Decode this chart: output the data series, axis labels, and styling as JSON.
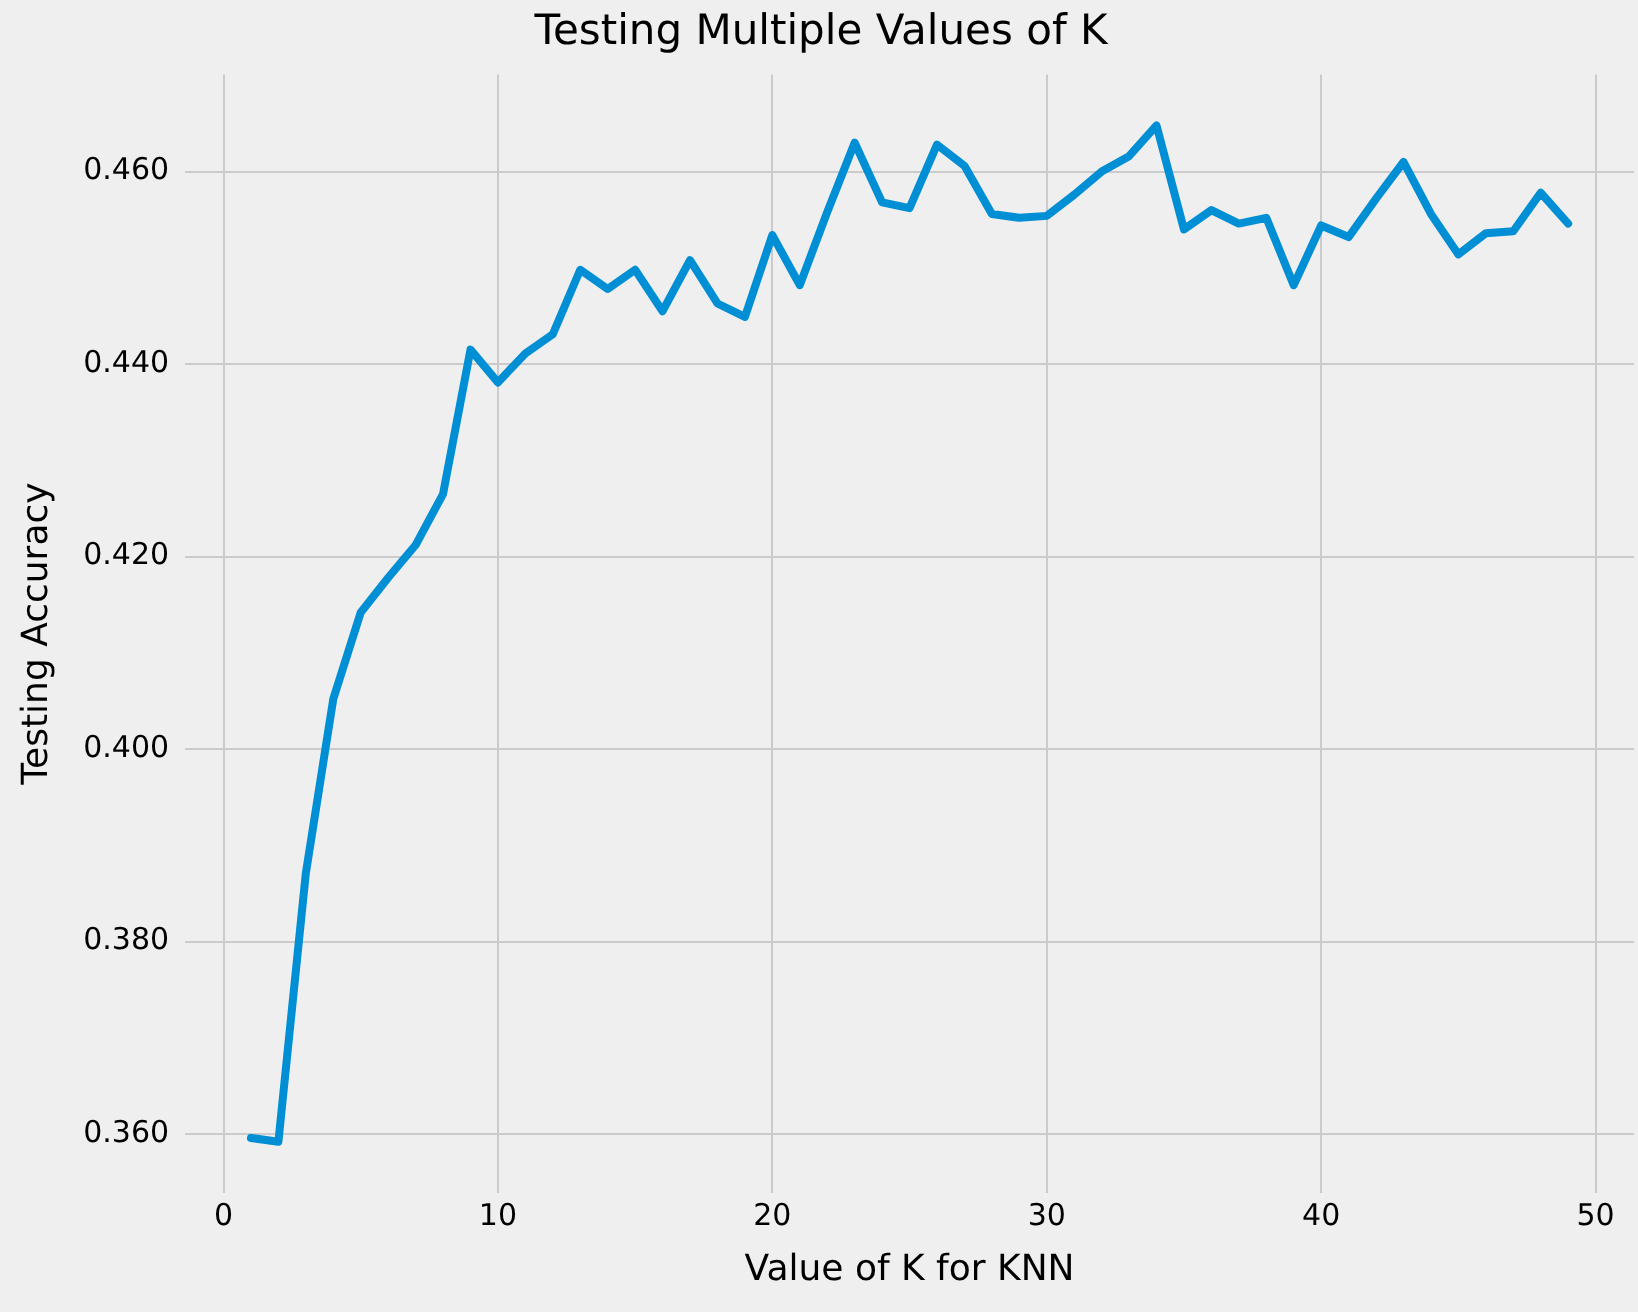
{
  "chart_data": {
    "type": "line",
    "title": "Testing Multiple Values of K",
    "xlabel": "Value of K for KNN",
    "ylabel": "Testing Accuracy",
    "x": [
      1,
      2,
      3,
      4,
      5,
      6,
      7,
      8,
      9,
      10,
      11,
      12,
      13,
      14,
      15,
      16,
      17,
      18,
      19,
      20,
      21,
      22,
      23,
      24,
      25,
      26,
      27,
      28,
      29,
      30,
      31,
      32,
      33,
      34,
      35,
      36,
      37,
      38,
      39,
      40,
      41,
      42,
      43,
      44,
      45,
      46,
      47,
      48,
      49
    ],
    "series": [
      {
        "color": "#008fd5",
        "values": [
          0.3596,
          0.3592,
          0.3871,
          0.4052,
          0.4142,
          0.4178,
          0.4212,
          0.4265,
          0.4415,
          0.4381,
          0.4411,
          0.4431,
          0.4498,
          0.4478,
          0.4498,
          0.4455,
          0.4508,
          0.4463,
          0.4449,
          0.4534,
          0.4482,
          0.4558,
          0.463,
          0.4568,
          0.4562,
          0.4628,
          0.4606,
          0.4556,
          0.4552,
          0.4554,
          0.4576,
          0.46,
          0.4616,
          0.4648,
          0.454,
          0.456,
          0.4546,
          0.4552,
          0.4482,
          0.4544,
          0.4532,
          0.4572,
          0.461,
          0.4556,
          0.4514,
          0.4536,
          0.4538,
          0.4578,
          0.4546
        ]
      }
    ],
    "xlim": [
      -1.4,
      51.4
    ],
    "xticks": [
      0,
      10,
      20,
      30,
      40,
      50
    ],
    "ylim": [
      0.3539,
      0.4701
    ],
    "yticks": [
      {
        "value": 0.36,
        "label": "0.360"
      },
      {
        "value": 0.38,
        "label": "0.380"
      },
      {
        "value": 0.4,
        "label": "0.400"
      },
      {
        "value": 0.42,
        "label": "0.420"
      },
      {
        "value": 0.44,
        "label": "0.440"
      },
      {
        "value": 0.46,
        "label": "0.460"
      }
    ],
    "grid": true,
    "legend": false,
    "marker": "none",
    "line_style": "solid"
  }
}
